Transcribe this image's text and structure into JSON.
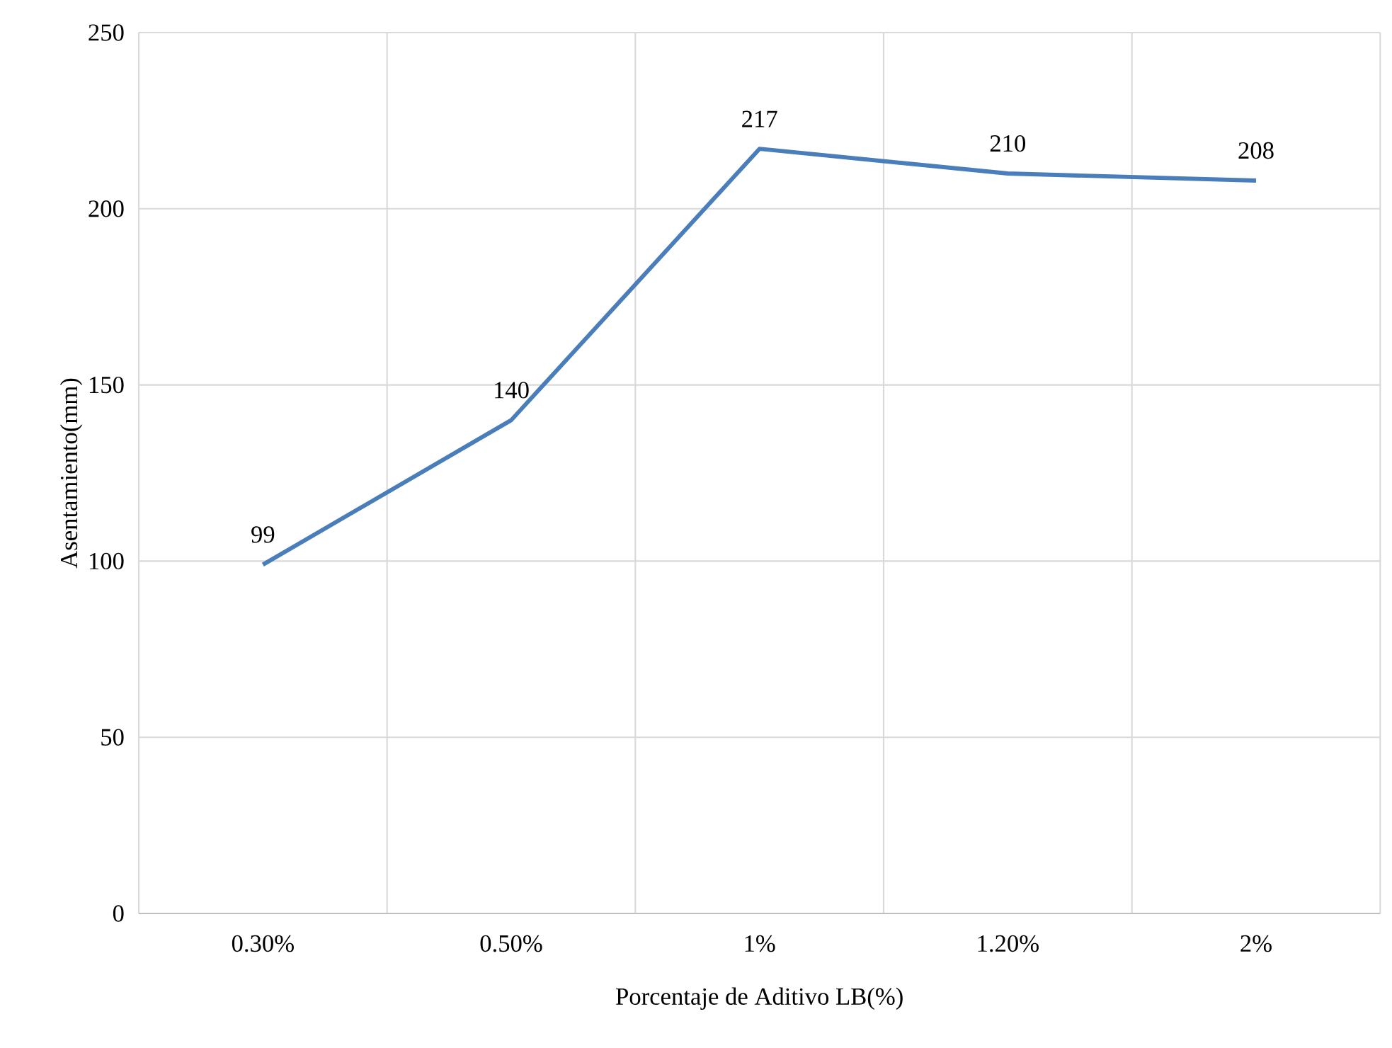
{
  "chart_data": {
    "type": "line",
    "xlabel": "Porcentaje de Aditivo LB(%)",
    "ylabel": "Asentamiento(mm)",
    "categories": [
      "0.30%",
      "0.50%",
      "1%",
      "1.20%",
      "2%"
    ],
    "series": [
      {
        "color": "#4a7ebb",
        "values": [
          99,
          140,
          217,
          210,
          208
        ]
      }
    ],
    "ylim": [
      0,
      250
    ],
    "yticks": [
      0,
      50,
      100,
      150,
      200,
      250
    ],
    "grid": true,
    "data_labels": true,
    "marker": "none",
    "line_style": "solid"
  }
}
